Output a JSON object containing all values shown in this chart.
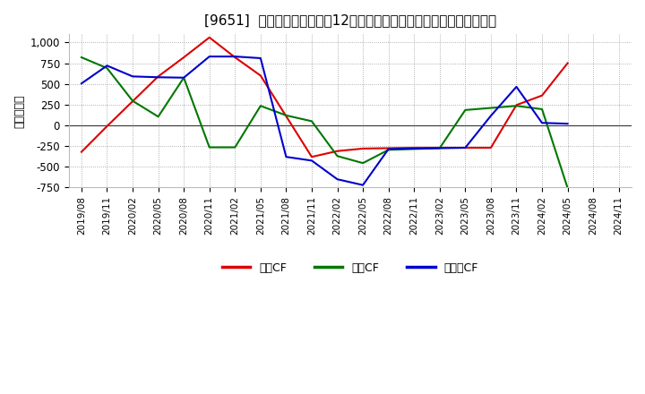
{
  "title": "[9651]  キャッシュフローの12か月移動合計の対前年同期増減額の推移",
  "ylabel": "（百万円）",
  "ylim": [
    -750,
    1100
  ],
  "yticks": [
    -750,
    -500,
    -250,
    0,
    250,
    500,
    750,
    1000
  ],
  "background_color": "#ffffff",
  "plot_bg_color": "#ffffff",
  "grid_color": "#999999",
  "x_labels": [
    "2019/08",
    "2019/11",
    "2020/02",
    "2020/05",
    "2020/08",
    "2020/11",
    "2021/02",
    "2021/05",
    "2021/08",
    "2021/11",
    "2022/02",
    "2022/05",
    "2022/08",
    "2022/11",
    "2023/02",
    "2023/05",
    "2023/08",
    "2023/11",
    "2024/02",
    "2024/05",
    "2024/08",
    "2024/11"
  ],
  "series": {
    "営業CF": {
      "color": "#dd0000",
      "values": [
        -320,
        -10,
        290,
        590,
        820,
        1060,
        820,
        600,
        110,
        -380,
        -310,
        -280,
        -275,
        -270,
        -270,
        -270,
        -270,
        245,
        360,
        750,
        null,
        null
      ]
    },
    "投資CF": {
      "color": "#007700",
      "values": [
        820,
        690,
        295,
        105,
        575,
        -265,
        -265,
        235,
        120,
        50,
        -370,
        -455,
        -295,
        -285,
        -275,
        185,
        210,
        235,
        195,
        -755,
        null,
        null
      ]
    },
    "フリーCF": {
      "color": "#0000cc",
      "values": [
        505,
        720,
        590,
        580,
        575,
        830,
        830,
        810,
        -380,
        -425,
        -650,
        -720,
        -285,
        -280,
        -275,
        -270,
        115,
        465,
        30,
        20,
        null,
        null
      ]
    }
  },
  "legend_labels": [
    "営業CF",
    "投資CF",
    "フリーCF"
  ],
  "legend_colors": [
    "#dd0000",
    "#007700",
    "#0000cc"
  ]
}
